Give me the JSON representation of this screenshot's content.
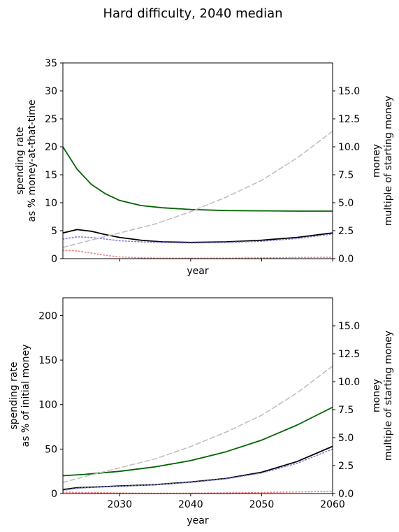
{
  "figure": {
    "title": "Hard difficulty, 2040 median"
  },
  "chart_data": [
    {
      "type": "line",
      "xlabel": "year",
      "ylabel_left": [
        "spending rate",
        "as % money-at-that-time"
      ],
      "ylabel_right": [
        "money",
        "multiple of starting money"
      ],
      "xlim": [
        2022,
        2060
      ],
      "x_ticks": [
        2030,
        2040,
        2050,
        2060
      ],
      "x_ticklabels_visible": false,
      "ylim_left": [
        0,
        35
      ],
      "y_ticks_left": [
        0,
        5,
        10,
        15,
        20,
        25,
        30,
        35
      ],
      "ylim_right": [
        0,
        17.5
      ],
      "y_ticks_right": [
        0.0,
        2.5,
        5.0,
        7.5,
        10.0,
        12.5,
        15.0
      ],
      "grid": false,
      "series": [
        {
          "style": "solid",
          "color": "#006400",
          "axis": "left",
          "x": [
            2022,
            2024,
            2026,
            2028,
            2030,
            2033,
            2036,
            2040,
            2045,
            2050,
            2055,
            2060
          ],
          "y": [
            20.0,
            16.0,
            13.3,
            11.6,
            10.4,
            9.5,
            9.1,
            8.8,
            8.6,
            8.55,
            8.5,
            8.5
          ]
        },
        {
          "style": "solid",
          "color": "#000000",
          "axis": "left",
          "x": [
            2022,
            2024,
            2026,
            2028,
            2030,
            2033,
            2036,
            2040,
            2045,
            2050,
            2055,
            2060
          ],
          "y": [
            4.6,
            5.2,
            4.9,
            4.3,
            3.8,
            3.3,
            3.0,
            2.9,
            3.0,
            3.3,
            3.8,
            4.6
          ]
        },
        {
          "style": "dotted",
          "color": "#7b7bdb",
          "axis": "left",
          "x": [
            2022,
            2024,
            2026,
            2028,
            2030,
            2033,
            2036,
            2040,
            2045,
            2050,
            2055,
            2060
          ],
          "y": [
            3.5,
            3.9,
            3.8,
            3.5,
            3.2,
            3.0,
            2.9,
            2.8,
            2.9,
            3.1,
            3.6,
            4.4
          ]
        },
        {
          "style": "dotted",
          "color": "#f08080",
          "axis": "left",
          "x": [
            2022,
            2024,
            2026,
            2028,
            2030,
            2033,
            2036,
            2040,
            2045,
            2050,
            2055,
            2060
          ],
          "y": [
            1.5,
            1.4,
            1.0,
            0.6,
            0.3,
            0.15,
            0.1,
            0.1,
            0.1,
            0.15,
            0.2,
            0.25
          ]
        },
        {
          "style": "dashed",
          "color": "#c0c0c0",
          "axis": "right",
          "x": [
            2022,
            2025,
            2030,
            2035,
            2040,
            2045,
            2050,
            2055,
            2060
          ],
          "y": [
            1.0,
            1.5,
            2.3,
            3.1,
            4.2,
            5.5,
            7.0,
            9.0,
            11.4
          ]
        }
      ]
    },
    {
      "type": "line",
      "xlabel": "year",
      "ylabel_left": [
        "spending rate",
        "as % of initial money"
      ],
      "ylabel_right": [
        "money",
        "multiple of starting money"
      ],
      "xlim": [
        2022,
        2060
      ],
      "x_ticks": [
        2030,
        2040,
        2050,
        2060
      ],
      "x_ticklabels_visible": true,
      "ylim_left": [
        0,
        220
      ],
      "y_ticks_left": [
        0,
        50,
        100,
        150,
        200
      ],
      "ylim_right": [
        0,
        17.5
      ],
      "y_ticks_right": [
        0.0,
        2.5,
        5.0,
        7.5,
        10.0,
        12.5,
        15.0
      ],
      "grid": false,
      "series": [
        {
          "style": "solid",
          "color": "#006400",
          "axis": "left",
          "x": [
            2022,
            2025,
            2030,
            2035,
            2040,
            2045,
            2050,
            2055,
            2060
          ],
          "y": [
            20,
            21.5,
            25,
            30,
            37,
            47,
            60,
            77,
            97
          ]
        },
        {
          "style": "solid",
          "color": "#000000",
          "axis": "left",
          "x": [
            2022,
            2024,
            2027,
            2030,
            2035,
            2040,
            2045,
            2050,
            2055,
            2060
          ],
          "y": [
            4.5,
            6.5,
            7.5,
            8.5,
            10,
            13,
            17,
            24,
            36,
            53
          ]
        },
        {
          "style": "dotted",
          "color": "#7b7bdb",
          "axis": "left",
          "x": [
            2022,
            2024,
            2027,
            2030,
            2035,
            2040,
            2045,
            2050,
            2055,
            2060
          ],
          "y": [
            3.5,
            6.0,
            7.2,
            8.2,
            9.8,
            12.5,
            16.5,
            23,
            34,
            50
          ]
        },
        {
          "style": "dotted",
          "color": "#f08080",
          "axis": "left",
          "x": [
            2022,
            2025,
            2030,
            2035,
            2040,
            2045,
            2050,
            2055,
            2060
          ],
          "y": [
            1.5,
            1.2,
            0.6,
            0.4,
            0.5,
            0.8,
            1.2,
            1.8,
            2.5
          ]
        },
        {
          "style": "dashed",
          "color": "#c0c0c0",
          "axis": "right",
          "x": [
            2022,
            2025,
            2030,
            2035,
            2040,
            2045,
            2050,
            2055,
            2060
          ],
          "y": [
            1.0,
            1.5,
            2.3,
            3.1,
            4.2,
            5.5,
            7.0,
            9.0,
            11.4
          ]
        }
      ]
    }
  ]
}
